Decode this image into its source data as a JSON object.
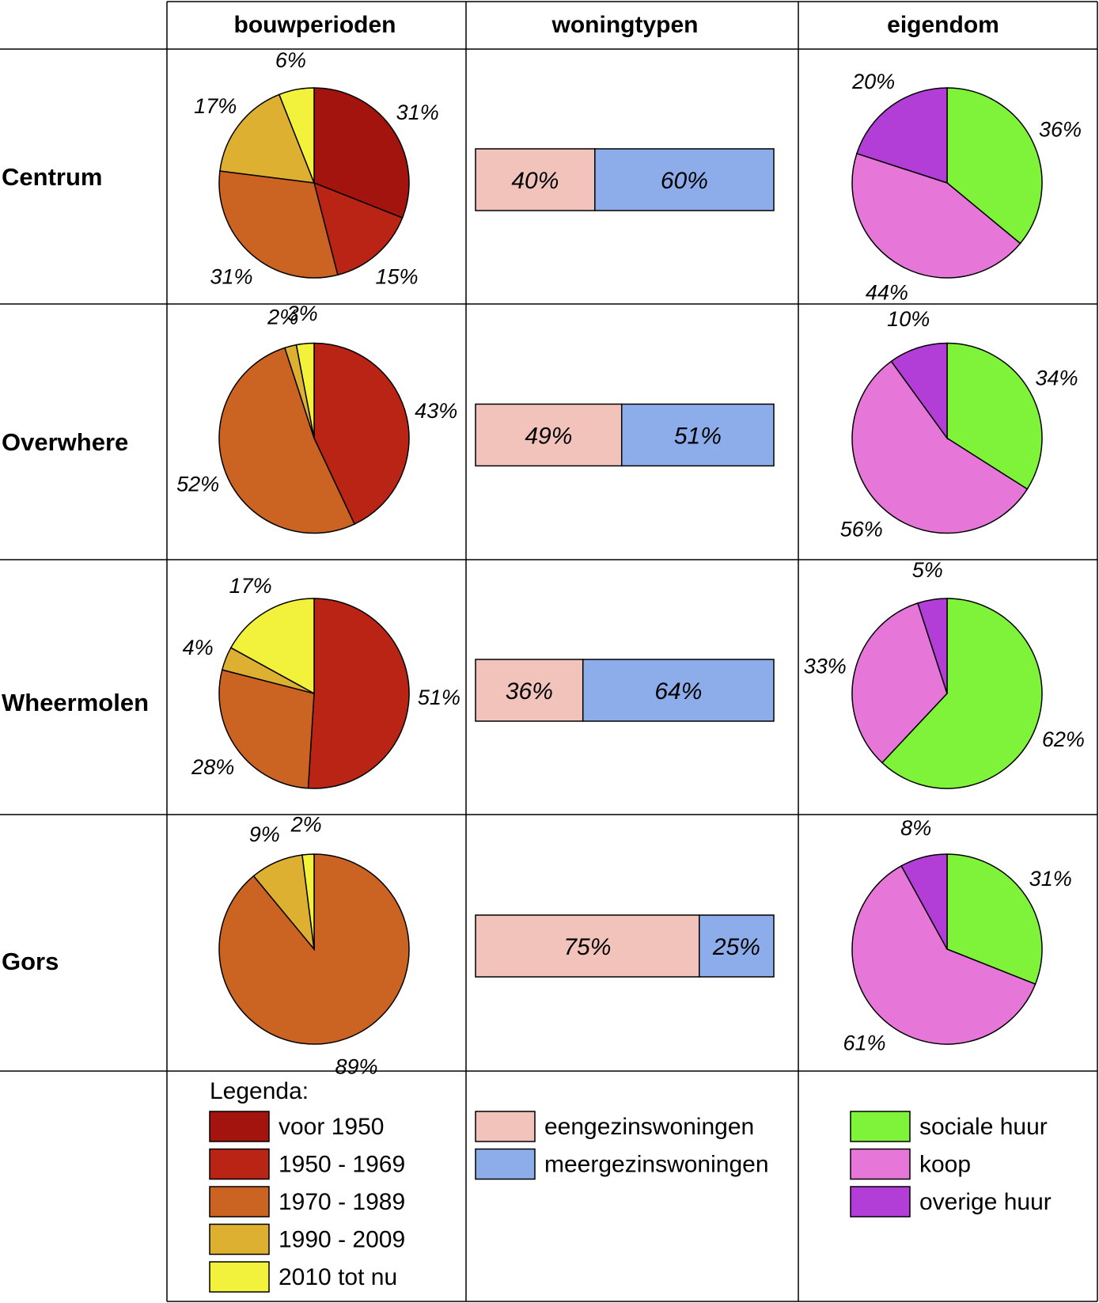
{
  "chart_data": {
    "type": "pie",
    "headers": [
      "bouwperioden",
      "woningtypen",
      "eigendom"
    ],
    "rows": [
      {
        "name": "Centrum",
        "bouwperioden": [
          {
            "category": "voor 1950",
            "value": 31,
            "label": "31%"
          },
          {
            "category": "1950 - 1969",
            "value": 15,
            "label": "15%"
          },
          {
            "category": "1970 - 1989",
            "value": 31,
            "label": "31%"
          },
          {
            "category": "1990 - 2009",
            "value": 17,
            "label": "17%"
          },
          {
            "category": "2010 tot nu",
            "value": 6,
            "label": "6%"
          }
        ],
        "woningtypen": [
          {
            "category": "eengezinswoningen",
            "value": 40,
            "label": "40%"
          },
          {
            "category": "meergezinswoningen",
            "value": 60,
            "label": "60%"
          }
        ],
        "eigendom": [
          {
            "category": "sociale huur",
            "value": 36,
            "label": "36%"
          },
          {
            "category": "koop",
            "value": 44,
            "label": "44%"
          },
          {
            "category": "overige huur",
            "value": 20,
            "label": "20%"
          }
        ]
      },
      {
        "name": "Overwhere",
        "bouwperioden": [
          {
            "category": "1950 - 1969",
            "value": 43,
            "label": "43%"
          },
          {
            "category": "1970 - 1989",
            "value": 52,
            "label": "52%"
          },
          {
            "category": "1990 - 2009",
            "value": 2,
            "label": "2%"
          },
          {
            "category": "2010 tot nu",
            "value": 3,
            "label": "3%"
          }
        ],
        "woningtypen": [
          {
            "category": "eengezinswoningen",
            "value": 49,
            "label": "49%"
          },
          {
            "category": "meergezinswoningen",
            "value": 51,
            "label": "51%"
          }
        ],
        "eigendom": [
          {
            "category": "sociale huur",
            "value": 34,
            "label": "34%"
          },
          {
            "category": "koop",
            "value": 56,
            "label": "56%"
          },
          {
            "category": "overige huur",
            "value": 10,
            "label": "10%"
          }
        ]
      },
      {
        "name": "Wheermolen",
        "bouwperioden": [
          {
            "category": "1950 - 1969",
            "value": 51,
            "label": "51%"
          },
          {
            "category": "1970 - 1989",
            "value": 28,
            "label": "28%"
          },
          {
            "category": "1990 - 2009",
            "value": 4,
            "label": "4%"
          },
          {
            "category": "2010 tot nu",
            "value": 17,
            "label": "17%"
          }
        ],
        "woningtypen": [
          {
            "category": "eengezinswoningen",
            "value": 36,
            "label": "36%"
          },
          {
            "category": "meergezinswoningen",
            "value": 64,
            "label": "64%"
          }
        ],
        "eigendom": [
          {
            "category": "sociale huur",
            "value": 62,
            "label": "62%"
          },
          {
            "category": "koop",
            "value": 33,
            "label": "33%"
          },
          {
            "category": "overige huur",
            "value": 5,
            "label": "5%"
          }
        ]
      },
      {
        "name": "Gors",
        "bouwperioden": [
          {
            "category": "1970 - 1989",
            "value": 89,
            "label": "89%"
          },
          {
            "category": "1990 - 2009",
            "value": 9,
            "label": "9%"
          },
          {
            "category": "2010 tot nu",
            "value": 2,
            "label": "2%"
          }
        ],
        "woningtypen": [
          {
            "category": "eengezinswoningen",
            "value": 75,
            "label": "75%"
          },
          {
            "category": "meergezinswoningen",
            "value": 25,
            "label": "25%"
          }
        ],
        "eigendom": [
          {
            "category": "sociale huur",
            "value": 31,
            "label": "31%"
          },
          {
            "category": "koop",
            "value": 61,
            "label": "61%"
          },
          {
            "category": "overige huur",
            "value": 8,
            "label": "8%"
          }
        ]
      }
    ],
    "legend": {
      "title": "Legenda:",
      "bouwperioden": [
        {
          "label": "voor 1950",
          "color": "#a4140f"
        },
        {
          "label": "1950 - 1969",
          "color": "#b92414"
        },
        {
          "label": "1970 - 1989",
          "color": "#cb6322"
        },
        {
          "label": "1990 - 2009",
          "color": "#deb031"
        },
        {
          "label": "2010 tot nu",
          "color": "#f2f23d"
        }
      ],
      "woningtypen": [
        {
          "label": "eengezinswoningen",
          "color": "#f2c3bb"
        },
        {
          "label": "meergezinswoningen",
          "color": "#8dacea"
        }
      ],
      "eigendom": [
        {
          "label": "sociale huur",
          "color": "#7ef339"
        },
        {
          "label": "koop",
          "color": "#e676d8"
        },
        {
          "label": "overige huur",
          "color": "#b33ed7"
        }
      ]
    }
  }
}
